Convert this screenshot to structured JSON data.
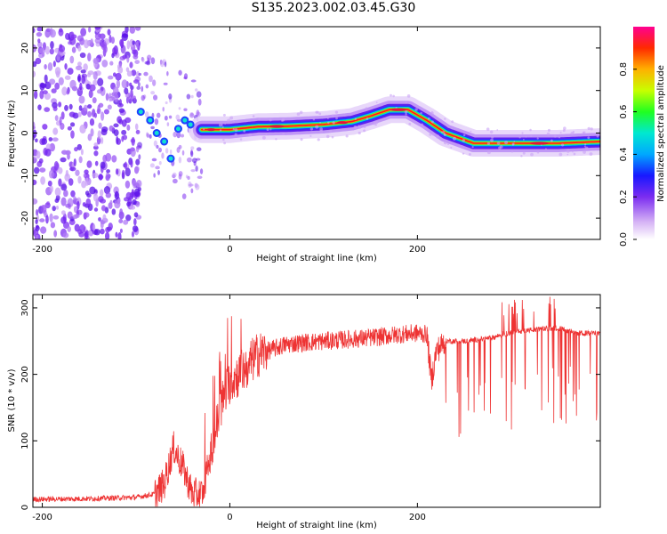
{
  "title": "S135.2023.002.03.45.G30",
  "chart_data": [
    {
      "type": "heatmap",
      "xlabel": "Height of straight line (km)",
      "ylabel": "Frequency (Hz)",
      "xlim": [
        -210,
        395
      ],
      "ylim": [
        -25,
        25
      ],
      "x_ticks": [
        "-200",
        "0",
        "200"
      ],
      "y_ticks": [
        "20",
        "10",
        "0",
        "-10",
        "-20"
      ],
      "colorbar": {
        "label": "Normalized spectral amplitude",
        "range": [
          0,
          1
        ],
        "ticks": [
          "0.0",
          "0.2",
          "0.4",
          "0.6",
          "0.8"
        ]
      },
      "ridge": {
        "x": [
          -30,
          0,
          30,
          60,
          100,
          130,
          150,
          170,
          190,
          210,
          230,
          260,
          300,
          350,
          395
        ],
        "y": [
          0.8,
          0.8,
          1.5,
          1.6,
          2,
          2.7,
          4,
          5.5,
          5.5,
          3,
          0,
          -2.4,
          -2.4,
          -2.4,
          -2
        ]
      },
      "noise_region": {
        "x": [
          -210,
          -100
        ],
        "y": [
          -25,
          25
        ]
      }
    },
    {
      "type": "line",
      "xlabel": "Height of straight line (km)",
      "ylabel": "SNR (10 * v/v)",
      "xlim": [
        -210,
        395
      ],
      "ylim": [
        0,
        320
      ],
      "x_ticks": [
        "-200",
        "0",
        "200"
      ],
      "y_ticks": [
        "300",
        "200",
        "100",
        "0"
      ],
      "color": "#ee3333",
      "series": [
        {
          "x": [
            -210,
            -150,
            -100,
            -80,
            -70,
            -60,
            -50,
            -40,
            -30,
            -20,
            -10,
            0,
            10,
            20,
            30,
            40,
            60,
            80,
            100,
            120,
            150,
            180,
            200,
            210,
            215,
            220,
            230,
            250,
            280,
            290,
            310,
            330,
            350,
            370,
            395
          ],
          "y": [
            12,
            13,
            15,
            20,
            35,
            90,
            60,
            20,
            20,
            80,
            150,
            190,
            200,
            215,
            230,
            235,
            245,
            248,
            250,
            252,
            255,
            260,
            262,
            260,
            190,
            235,
            250,
            250,
            255,
            260,
            265,
            268,
            270,
            262,
            262
          ]
        }
      ]
    }
  ]
}
